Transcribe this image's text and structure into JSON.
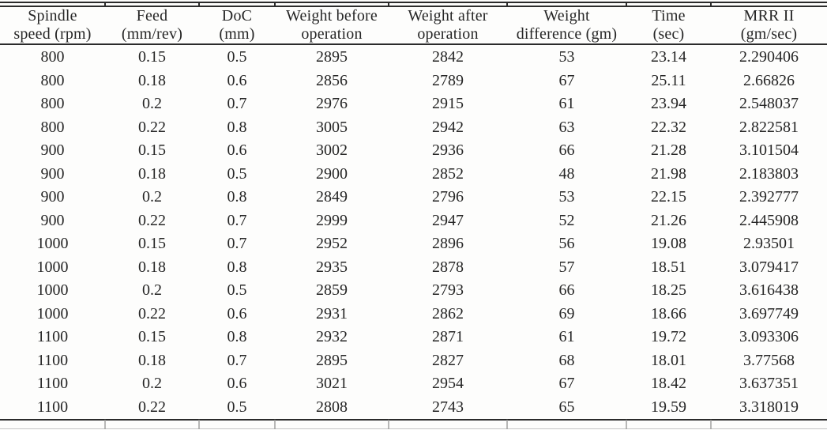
{
  "colors": {
    "text": "#262626",
    "rule": "#2b2b2b",
    "faint_rule": "#9a9a9a",
    "bg": "#fdfdfc"
  },
  "table": {
    "headers": [
      {
        "line1": "Spindle",
        "line2": "speed (rpm)"
      },
      {
        "line1": "Feed",
        "line2": "(mm/rev)"
      },
      {
        "line1": "DoC",
        "line2": "(mm)"
      },
      {
        "line1": "Weight before",
        "line2": "operation"
      },
      {
        "line1": "Weight after",
        "line2": "operation"
      },
      {
        "line1": "Weight",
        "line2": "difference (gm)"
      },
      {
        "line1": "Time",
        "line2": "(sec)"
      },
      {
        "line1": "MRR II",
        "line2": "(gm/sec)"
      }
    ],
    "rows": [
      [
        "800",
        "0.15",
        "0.5",
        "2895",
        "2842",
        "53",
        "23.14",
        "2.290406"
      ],
      [
        "800",
        "0.18",
        "0.6",
        "2856",
        "2789",
        "67",
        "25.11",
        "2.66826"
      ],
      [
        "800",
        "0.2",
        "0.7",
        "2976",
        "2915",
        "61",
        "23.94",
        "2.548037"
      ],
      [
        "800",
        "0.22",
        "0.8",
        "3005",
        "2942",
        "63",
        "22.32",
        "2.822581"
      ],
      [
        "900",
        "0.15",
        "0.6",
        "3002",
        "2936",
        "66",
        "21.28",
        "3.101504"
      ],
      [
        "900",
        "0.18",
        "0.5",
        "2900",
        "2852",
        "48",
        "21.98",
        "2.183803"
      ],
      [
        "900",
        "0.2",
        "0.8",
        "2849",
        "2796",
        "53",
        "22.15",
        "2.392777"
      ],
      [
        "900",
        "0.22",
        "0.7",
        "2999",
        "2947",
        "52",
        "21.26",
        "2.445908"
      ],
      [
        "1000",
        "0.15",
        "0.7",
        "2952",
        "2896",
        "56",
        "19.08",
        "2.93501"
      ],
      [
        "1000",
        "0.18",
        "0.8",
        "2935",
        "2878",
        "57",
        "18.51",
        "3.079417"
      ],
      [
        "1000",
        "0.2",
        "0.5",
        "2859",
        "2793",
        "66",
        "18.25",
        "3.616438"
      ],
      [
        "1000",
        "0.22",
        "0.6",
        "2931",
        "2862",
        "69",
        "18.66",
        "3.697749"
      ],
      [
        "1100",
        "0.15",
        "0.8",
        "2932",
        "2871",
        "61",
        "19.72",
        "3.093306"
      ],
      [
        "1100",
        "0.18",
        "0.7",
        "2895",
        "2827",
        "68",
        "18.01",
        "3.77568"
      ],
      [
        "1100",
        "0.2",
        "0.6",
        "3021",
        "2954",
        "67",
        "18.42",
        "3.637351"
      ],
      [
        "1100",
        "0.22",
        "0.5",
        "2808",
        "2743",
        "65",
        "19.59",
        "3.318019"
      ]
    ]
  }
}
